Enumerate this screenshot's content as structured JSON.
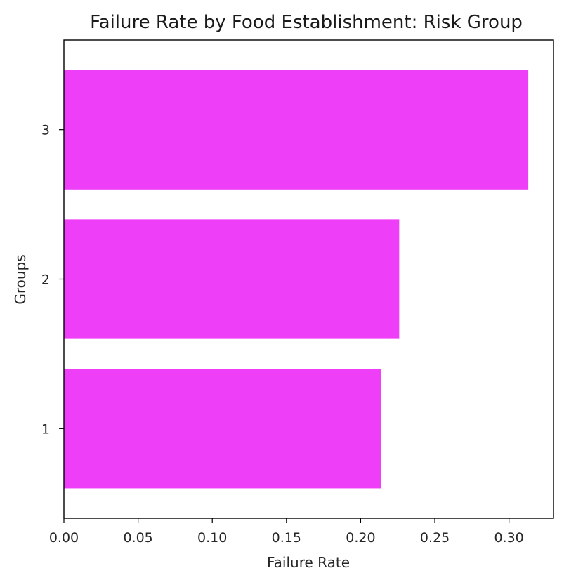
{
  "chart_data": {
    "type": "bar",
    "orientation": "horizontal",
    "title": "Failure Rate by Food Establishment: Risk Group",
    "xlabel": "Failure Rate",
    "ylabel": "Groups",
    "categories": [
      "1",
      "2",
      "3"
    ],
    "values": [
      0.214,
      0.226,
      0.313
    ],
    "xlim": [
      0,
      0.33
    ],
    "xticks": [
      "0.00",
      "0.05",
      "0.10",
      "0.15",
      "0.20",
      "0.25",
      "0.30"
    ],
    "xtick_values": [
      0,
      0.05,
      0.1,
      0.15,
      0.2,
      0.25,
      0.3
    ],
    "grid": false,
    "bar_color": "#ee3ef8",
    "legend": "none"
  }
}
